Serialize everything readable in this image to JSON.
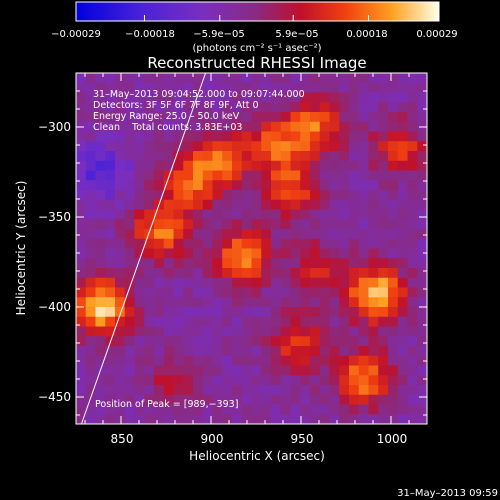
{
  "chart_data": {
    "type": "heatmap",
    "title": "Reconstructed RHESSI Image",
    "xlabel": "Heliocentric X (arcsec)",
    "ylabel": "Heliocentric Y (arcsec)",
    "xlim": [
      825,
      1020
    ],
    "ylim": [
      -465,
      -270
    ],
    "xticks": [
      850,
      900,
      950,
      1000
    ],
    "xtick_labels": [
      "850",
      "900",
      "950",
      "1000"
    ],
    "yticks": [
      -300,
      -350,
      -400,
      -450
    ],
    "ytick_labels": [
      "−300",
      "−350",
      "−400",
      "−450"
    ],
    "colorbar": {
      "range": [
        -0.00029,
        0.00029
      ],
      "ticks": [
        -0.00029,
        -0.00018,
        -5.9e-05,
        5.9e-05,
        0.00018,
        0.00029
      ],
      "tick_labels": [
        "−0.00029",
        "−0.00018",
        "−5.9e−05",
        "5.9e−05",
        "0.00018",
        "0.00029"
      ],
      "unit_label": "(photons cm⁻² s⁻¹ asec⁻²)"
    },
    "annotations": {
      "time": "31–May–2013 09:04:52.000 to 09:07:44.000",
      "detectors": "Detectors: 3F 5F 6F 7F 8F 9F, Att 0",
      "energy": "Energy Range: 25.0 – 50.0 keV",
      "clean": "Clean    Total counts: 3.83E+03",
      "peak": "Position of Peak = [989,−393]"
    },
    "peak": [
      989,
      -393
    ],
    "limb_line": [
      [
        828,
        -465
      ],
      [
        897,
        -270
      ]
    ],
    "grid": false,
    "sources": [
      {
        "x": 840,
        "y": -400,
        "amp": 0.0003
      },
      {
        "x": 872,
        "y": -358,
        "amp": 0.00022
      },
      {
        "x": 888,
        "y": -332,
        "amp": 0.00018
      },
      {
        "x": 905,
        "y": -318,
        "amp": 0.0002
      },
      {
        "x": 918,
        "y": -372,
        "amp": 0.00024
      },
      {
        "x": 935,
        "y": -310,
        "amp": 0.00018
      },
      {
        "x": 945,
        "y": -335,
        "amp": 0.00018
      },
      {
        "x": 958,
        "y": -300,
        "amp": 0.0002
      },
      {
        "x": 1005,
        "y": -312,
        "amp": 0.00016
      },
      {
        "x": 992,
        "y": -393,
        "amp": 0.00029
      },
      {
        "x": 985,
        "y": -440,
        "amp": 0.00022
      },
      {
        "x": 948,
        "y": -420,
        "amp": 0.00016
      },
      {
        "x": 960,
        "y": -380,
        "amp": 0.00014
      },
      {
        "x": 880,
        "y": -440,
        "amp": 0.0001
      },
      {
        "x": 838,
        "y": -325,
        "amp": -0.00012
      }
    ]
  },
  "footer": {
    "timestamp": "31–May–2013 09:59"
  }
}
